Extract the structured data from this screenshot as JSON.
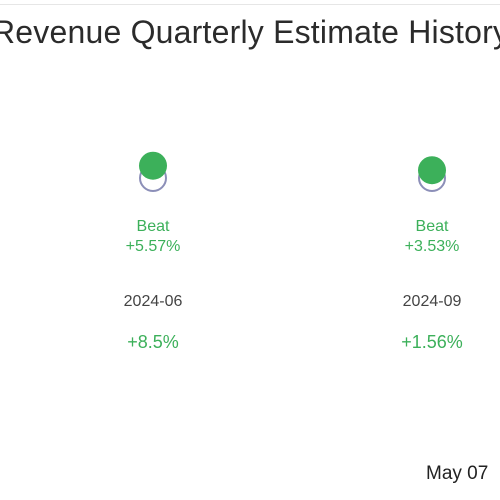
{
  "chart_data": {
    "type": "scatter",
    "title": "Revenue Quarterly Estimate History",
    "series": [
      {
        "values": [
          {
            "x": "2024-06",
            "estimate_relative": 0,
            "actual_relative": 5.57
          },
          {
            "x": "2024-09",
            "estimate_relative": 0,
            "actual_relative": 3.53
          }
        ]
      }
    ],
    "points": [
      {
        "period": "2024-06",
        "result": "Beat",
        "surprise": "+5.57%",
        "growth": "+8.5%",
        "surprise_value": 5.57
      },
      {
        "period": "2024-09",
        "result": "Beat",
        "surprise": "+3.53%",
        "growth": "+1.56%",
        "surprise_value": 3.53
      }
    ],
    "colors": {
      "beat": "#3cb05a",
      "estimate_ring": "#8c8fb8",
      "period_text": "#444444"
    },
    "date_stamp": "May 07"
  }
}
